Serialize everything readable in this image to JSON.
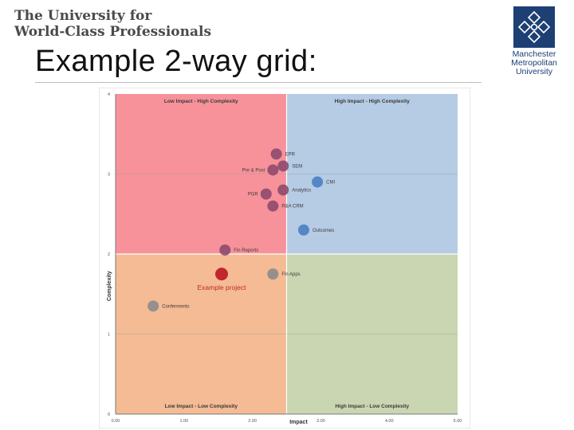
{
  "header": {
    "tagline_line1": "The University for",
    "tagline_line2": "World-Class Professionals",
    "slide_title": "Example 2-way grid:"
  },
  "logo": {
    "line1": "Manchester",
    "line2": "Metropolitan",
    "line3": "University",
    "color": "#1d3f74"
  },
  "chart_data": {
    "type": "scatter",
    "xlabel": "Impact",
    "ylabel": "Complexity",
    "xlim": [
      0,
      5
    ],
    "ylim": [
      0,
      4
    ],
    "x_ticks": [
      "0.00",
      "1.00",
      "2.00",
      "3.00",
      "4.00",
      "5.00"
    ],
    "y_ticks": [
      "0",
      "1",
      "2",
      "3",
      "4"
    ],
    "divider": {
      "x": 2.5,
      "y": 2
    },
    "quadrants": [
      {
        "name": "top-left",
        "label": "Low Impact - High Complexity",
        "color": "#f7929a"
      },
      {
        "name": "top-right",
        "label": "High Impact - High Complexity",
        "color": "#b6cbe4"
      },
      {
        "name": "bottom-left",
        "label": "Low Impact - Low Complexity",
        "color": "#f4bb94"
      },
      {
        "name": "bottom-right",
        "label": "High Impact - Low Complexity",
        "color": "#c9d6b1"
      }
    ],
    "points": [
      {
        "label": "EPR",
        "x": 2.35,
        "y": 3.25,
        "color": "#8e4a6e",
        "label_side": "right"
      },
      {
        "label": "SEM",
        "x": 2.45,
        "y": 3.1,
        "color": "#8e4a6e",
        "label_side": "right"
      },
      {
        "label": "Pre & Post",
        "x": 2.3,
        "y": 3.05,
        "color": "#8e4a6e",
        "label_side": "left"
      },
      {
        "label": "CMI",
        "x": 2.95,
        "y": 2.9,
        "color": "#4a7fc3",
        "label_side": "right"
      },
      {
        "label": "Analytics",
        "x": 2.45,
        "y": 2.8,
        "color": "#8e4a6e",
        "label_side": "right"
      },
      {
        "label": "PGR",
        "x": 2.2,
        "y": 2.75,
        "color": "#8e4a6e",
        "label_side": "left"
      },
      {
        "label": "R&A CRM",
        "x": 2.3,
        "y": 2.6,
        "color": "#8e4a6e",
        "label_side": "right"
      },
      {
        "label": "Outcomes",
        "x": 2.75,
        "y": 2.3,
        "color": "#4a7fc3",
        "label_side": "right"
      },
      {
        "label": "Fin Reports",
        "x": 1.6,
        "y": 2.05,
        "color": "#8e4a6e",
        "label_side": "right"
      },
      {
        "label": "Fin Apps",
        "x": 2.3,
        "y": 1.75,
        "color": "#8c8c8c",
        "label_side": "right"
      },
      {
        "label": "Conferments",
        "x": 0.55,
        "y": 1.35,
        "color": "#8c8c8c",
        "label_side": "right"
      }
    ],
    "highlight": {
      "label": "Example project",
      "x": 1.55,
      "y": 1.75,
      "color": "#c0282d",
      "label_color": "#c0282d"
    }
  }
}
